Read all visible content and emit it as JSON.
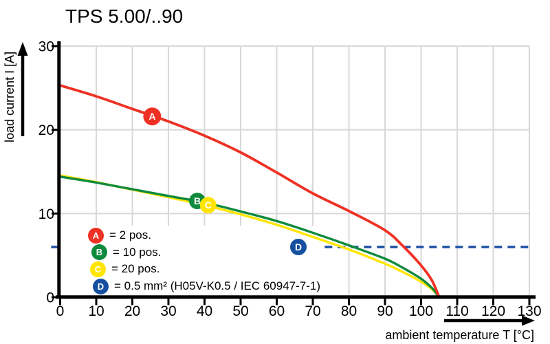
{
  "title": "TPS 5.00/..90",
  "chart_data": {
    "type": "line",
    "title": "TPS 5.00/..90",
    "xlabel": "ambient temperature T [°C]",
    "ylabel": "load current I [A]",
    "xlim": [
      0,
      130
    ],
    "ylim": [
      0,
      30
    ],
    "x_ticks": [
      0,
      10,
      20,
      30,
      40,
      50,
      60,
      70,
      80,
      90,
      100,
      110,
      120,
      130
    ],
    "y_ticks": [
      0,
      10,
      20,
      30
    ],
    "grid": true,
    "legend_position": "inside-bottom-left",
    "series": [
      {
        "id": "A",
        "name": "2 pos.",
        "color": "#ee3124",
        "points": [
          [
            0,
            25.3
          ],
          [
            10,
            24.0
          ],
          [
            20,
            22.5
          ],
          [
            30,
            21.0
          ],
          [
            40,
            19.3
          ],
          [
            50,
            17.3
          ],
          [
            60,
            14.9
          ],
          [
            70,
            12.4
          ],
          [
            80,
            10.3
          ],
          [
            90,
            8.0
          ],
          [
            95,
            6.1
          ],
          [
            100,
            3.8
          ],
          [
            103,
            2.0
          ],
          [
            105,
            0
          ]
        ]
      },
      {
        "id": "B",
        "name": "10 pos.",
        "color": "#0f8a3d",
        "points": [
          [
            0,
            14.4
          ],
          [
            10,
            13.7
          ],
          [
            20,
            12.9
          ],
          [
            30,
            12.1
          ],
          [
            40,
            11.3
          ],
          [
            50,
            10.25
          ],
          [
            60,
            9.1
          ],
          [
            70,
            7.7
          ],
          [
            80,
            6.2
          ],
          [
            90,
            4.6
          ],
          [
            95,
            3.5
          ],
          [
            100,
            2.2
          ],
          [
            103,
            1.1
          ],
          [
            105,
            0
          ]
        ]
      },
      {
        "id": "C",
        "name": "20 pos.",
        "color": "#ffe500",
        "points": [
          [
            0,
            14.55
          ],
          [
            10,
            13.75
          ],
          [
            20,
            12.85
          ],
          [
            30,
            11.95
          ],
          [
            40,
            11.0
          ],
          [
            50,
            9.9
          ],
          [
            60,
            8.65
          ],
          [
            70,
            7.2
          ],
          [
            80,
            5.7
          ],
          [
            90,
            4.0
          ],
          [
            95,
            3.0
          ],
          [
            100,
            1.85
          ],
          [
            103,
            0.95
          ],
          [
            105,
            0
          ]
        ]
      }
    ],
    "markers": [
      {
        "id": "A",
        "t": 25.5,
        "i": 21.6,
        "color": "#ee3124"
      },
      {
        "id": "B",
        "t": 38,
        "i": 11.5,
        "color": "#0f8a3d"
      },
      {
        "id": "C",
        "t": 41,
        "i": 11.0,
        "color": "#ffe500"
      },
      {
        "id": "D",
        "t": 66,
        "i": 6,
        "color": "#164f9f"
      }
    ],
    "reference_line": {
      "id": "D",
      "value": 6,
      "color": "#1d50a3",
      "style": "dashed",
      "segments_t": [
        [
          -2.5,
          -0.3
        ],
        [
          73.3,
          130.4
        ]
      ]
    }
  },
  "legend": {
    "items": [
      {
        "id": "A",
        "color": "#ee3124",
        "label": "= 2 pos."
      },
      {
        "id": "B",
        "color": "#0f8a3d",
        "label": "= 10 pos."
      },
      {
        "id": "C",
        "color": "#ffe500",
        "label": "= 20 pos."
      },
      {
        "id": "D",
        "color": "#164f9f",
        "label": "= 0.5 mm² (H05V-K0.5 / IEC 60947-7-1)"
      }
    ]
  },
  "colors": {
    "grid": "#d8d8d8",
    "axis": "#000000",
    "background": "#ffffff"
  }
}
